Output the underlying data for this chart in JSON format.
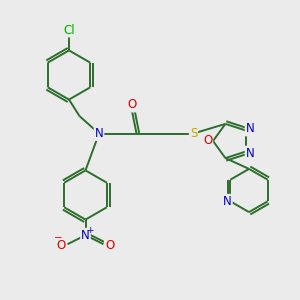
{
  "background_color": "#ebebeb",
  "bond_color": "#2d6e2d",
  "atom_colors": {
    "N": "#0000cc",
    "O": "#dd0000",
    "S": "#bbaa00",
    "Cl": "#00aa00",
    "C": "#2d6e2d"
  },
  "font_size_atom": 8.5,
  "fig_size": [
    3.0,
    3.0
  ],
  "dpi": 100
}
